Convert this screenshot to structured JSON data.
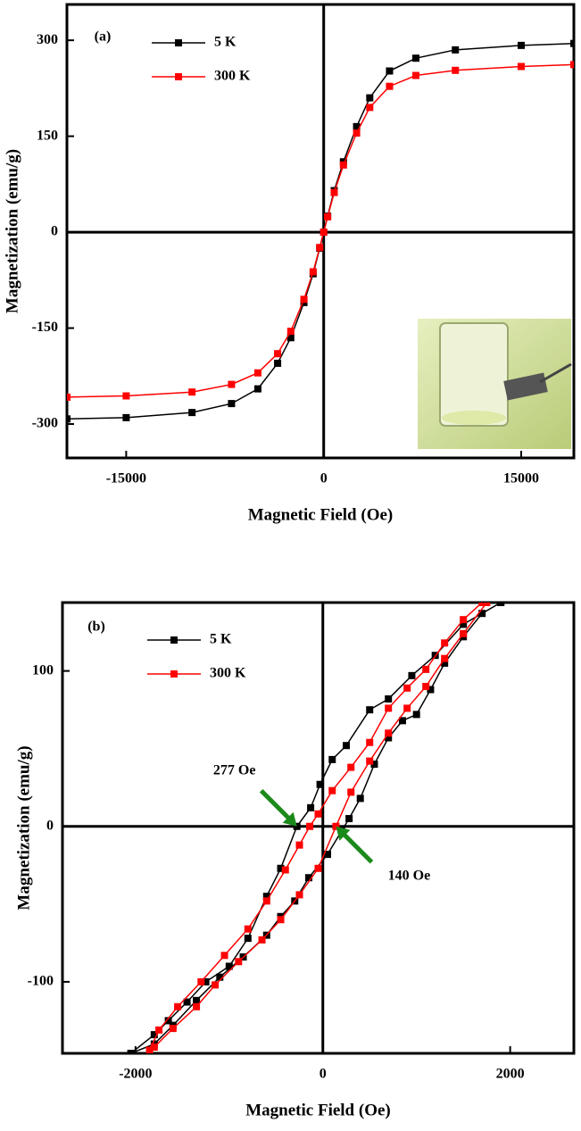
{
  "chart_data": [
    {
      "type": "line",
      "label": "(a)",
      "x_label": "Magnetic Field (Oe)",
      "y_label": "Magnetization (emu/g)",
      "xlim": [
        -19500,
        19000
      ],
      "ylim": [
        -353,
        356
      ],
      "xticks": [
        -15000,
        0,
        15000
      ],
      "yticks": [
        -300,
        -150,
        0,
        150,
        300
      ],
      "series": [
        {
          "name": "5 K",
          "color": "#000000",
          "x": [
            -19500,
            -15000,
            -10000,
            -7000,
            -5000,
            -3500,
            -2500,
            -1500,
            -800,
            -300,
            0,
            300,
            800,
            1500,
            2500,
            3500,
            5000,
            7000,
            10000,
            15000,
            19000
          ],
          "values": [
            -292,
            -290,
            -282,
            -268,
            -245,
            -205,
            -165,
            -110,
            -65,
            -25,
            0,
            25,
            65,
            110,
            165,
            210,
            252,
            272,
            285,
            292,
            295
          ]
        },
        {
          "name": "300 K",
          "color": "#ff0000",
          "x": [
            -19500,
            -15000,
            -10000,
            -7000,
            -5000,
            -3500,
            -2500,
            -1500,
            -800,
            -300,
            0,
            300,
            800,
            1500,
            2500,
            3500,
            5000,
            7000,
            10000,
            15000,
            19000
          ],
          "values": [
            -258,
            -256,
            -250,
            -238,
            -220,
            -190,
            -155,
            -105,
            -62,
            -24,
            0,
            24,
            62,
            105,
            155,
            195,
            228,
            245,
            253,
            259,
            262
          ]
        }
      ]
    },
    {
      "type": "line",
      "label": "(b)",
      "x_label": "Magnetic Field (Oe)",
      "y_label": "Magnetization (emu/g)",
      "xlim": [
        -2780,
        2680
      ],
      "ylim": [
        -146,
        144
      ],
      "xticks": [
        -2000,
        0,
        2000
      ],
      "yticks": [
        -100,
        0,
        100
      ],
      "annotations": [
        {
          "text": "277 Oe",
          "x": -277,
          "y": 0
        },
        {
          "text": "140 Oe",
          "x": 140,
          "y": 0
        }
      ],
      "series": [
        {
          "name": "5 K",
          "color": "#000000",
          "x": [
            1900,
            1500,
            1200,
            950,
            700,
            500,
            250,
            100,
            -30,
            -130,
            -277,
            -450,
            -600,
            -800,
            -1000,
            -1250,
            -1450,
            -1650,
            -1800,
            -2050,
            -1800,
            -1600,
            -1350,
            -1100,
            -850,
            -600,
            -450,
            -300,
            -150,
            50,
            200,
            280,
            400,
            550,
            700,
            850,
            1000,
            1150,
            1300,
            1500,
            1700,
            1900
          ],
          "values": [
            144,
            130,
            110,
            97,
            82,
            75,
            52,
            43,
            27,
            12,
            0,
            -27,
            -45,
            -72,
            -90,
            -100,
            -113,
            -125,
            -134,
            -146,
            -140,
            -128,
            -112,
            -97,
            -84,
            -70,
            -58,
            -48,
            -33,
            -18,
            -3,
            5,
            18,
            40,
            57,
            68,
            72,
            88,
            105,
            122,
            137,
            144
          ]
        },
        {
          "name": "300 K",
          "color": "#ff0000",
          "x": [
            1700,
            1500,
            1300,
            1100,
            900,
            700,
            500,
            300,
            100,
            -50,
            -140,
            -250,
            -400,
            -600,
            -800,
            -1050,
            -1300,
            -1550,
            -1750,
            -1850,
            -1800,
            -1600,
            -1350,
            -1150,
            -900,
            -650,
            -450,
            -250,
            -50,
            140,
            300,
            500,
            700,
            900,
            1100,
            1300,
            1500,
            1750
          ],
          "values": [
            144,
            133,
            118,
            101,
            89,
            76,
            54,
            38,
            23,
            8,
            0,
            -12,
            -28,
            -48,
            -66,
            -83,
            -100,
            -116,
            -131,
            -144,
            -142,
            -130,
            -116,
            -102,
            -87,
            -73,
            -60,
            -44,
            -27,
            0,
            22,
            42,
            60,
            76,
            90,
            108,
            124,
            144
          ]
        }
      ]
    }
  ]
}
